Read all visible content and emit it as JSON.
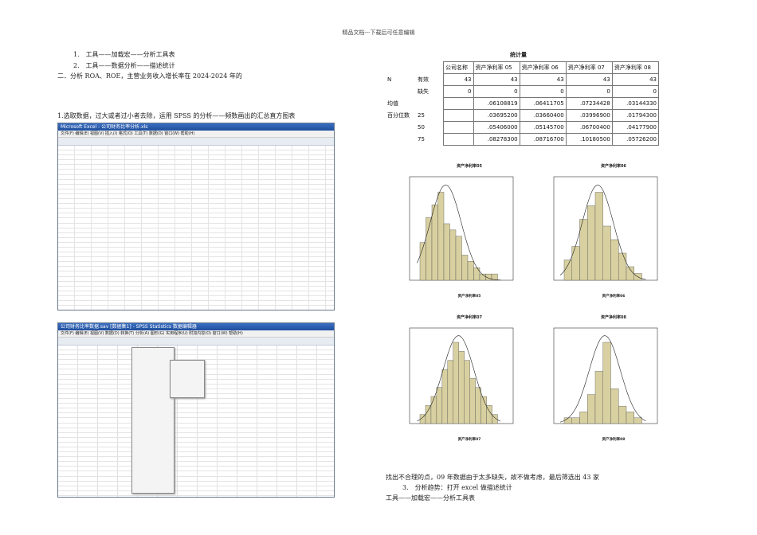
{
  "header": "精品文档---下载后可任意编辑",
  "intro": {
    "item1": "1.　工具——加载宏——分析工具表",
    "item2": "2.　工具——数据分析——描述统计",
    "section": "二．分析 ROA、ROE，主营业务收入增长率在 2024-2024 年的",
    "step1": "1.选取数据，过大或者过小者去除，运用 SPSS 的分析——频数画出的汇总直方图表"
  },
  "stats": {
    "title": "统计量",
    "columns": [
      "公司名称",
      "资产净利率 05",
      "资产净利率 06",
      "资产净利率 07",
      "资产净利率 08"
    ],
    "rows": [
      {
        "l1": "N",
        "l2": "有效",
        "values": [
          "43",
          "43",
          "43",
          "43",
          "43"
        ]
      },
      {
        "l1": "",
        "l2": "缺失",
        "values": [
          "0",
          "0",
          "0",
          "0",
          "0"
        ]
      },
      {
        "l1": "均值",
        "l2": "",
        "values": [
          "",
          ".06108819",
          ".06411705",
          ".07234428",
          ".03144330"
        ]
      },
      {
        "l1": "百分位数",
        "l2": "25",
        "values": [
          "",
          ".03695200",
          ".03660400",
          ".03996900",
          ".01794300"
        ]
      },
      {
        "l1": "",
        "l2": "50",
        "values": [
          "",
          ".05406000",
          ".05145700",
          ".06700400",
          ".04177900"
        ]
      },
      {
        "l1": "",
        "l2": "75",
        "values": [
          "",
          ".08278300",
          ".08716700",
          ".10180500",
          ".05726200"
        ]
      }
    ]
  },
  "histograms": [
    {
      "title": "资产净利率05",
      "xlabel": "资产净利率05"
    },
    {
      "title": "资产净利率06",
      "xlabel": "资产净利率06"
    },
    {
      "title": "资产净利率07",
      "xlabel": "资产净利率07"
    },
    {
      "title": "资产净利率08",
      "xlabel": "资产净利率08"
    }
  ],
  "excel_shot": {
    "title": "Microsoft Excel - 公司财务比率分析.xls",
    "menu": "文件(F)  编辑(E)  视图(V)  插入(I)  格式(O)  工具(T)  数据(D)  窗口(W)  帮助(H)"
  },
  "spss_shot": {
    "title": "公司财务比率数据.sav [数据集1] - SPSS Statistics 数据编辑器",
    "menu": "文件(F)  编辑(E)  视图(V)  数据(D)  转换(T)  分析(A)  图形(G)  实用程序(U)  附加内容(O)  窗口(W)  帮助(H)"
  },
  "footer": {
    "note": "找出不合理的点，09 年数据由于太多缺失，故不做考虑，最后筛选出 43 家",
    "step3": "3.　分析趋势：打开 excel 做描述统计",
    "tools": "工具——加载宏——分析工具表"
  }
}
